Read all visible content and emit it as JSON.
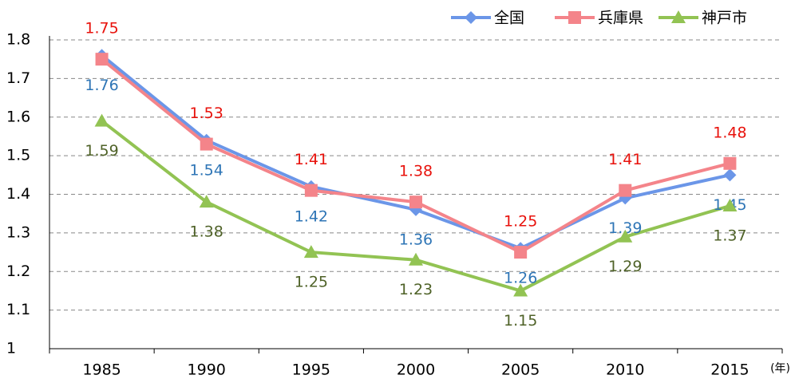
{
  "chart_data": {
    "type": "line",
    "categories": [
      "1985",
      "1990",
      "1995",
      "2000",
      "2005",
      "2010",
      "2015"
    ],
    "x_label": "(年)",
    "series": [
      {
        "name": "全国",
        "color": "#6b96e8",
        "label_color": "#2e75b6",
        "marker": "diamond",
        "label_position": "below",
        "values": [
          1.76,
          1.54,
          1.42,
          1.36,
          1.26,
          1.39,
          1.45
        ]
      },
      {
        "name": "兵庫県",
        "color": "#f4848a",
        "label_color": "#e8120c",
        "marker": "square",
        "label_position": "above",
        "values": [
          1.75,
          1.53,
          1.41,
          1.38,
          1.25,
          1.41,
          1.48
        ]
      },
      {
        "name": "神戸市",
        "color": "#92c353",
        "label_color": "#4f6228",
        "marker": "triangle",
        "label_position": "below",
        "values": [
          1.59,
          1.38,
          1.25,
          1.23,
          1.15,
          1.29,
          1.37
        ]
      }
    ],
    "ylim": [
      1,
      1.8
    ],
    "yticks": [
      1,
      1.1,
      1.2,
      1.3,
      1.4,
      1.5,
      1.6,
      1.7,
      1.8
    ],
    "grid": true,
    "legend": "top-right"
  }
}
